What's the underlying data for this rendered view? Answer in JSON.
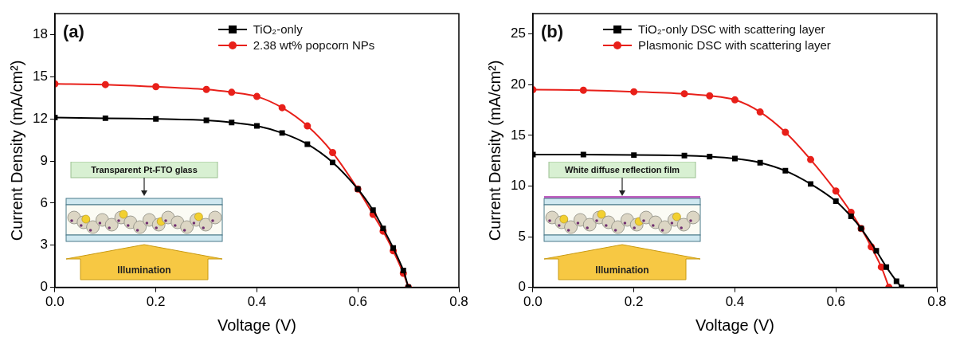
{
  "chart_data": [
    {
      "type": "line",
      "label": "(a)",
      "x_label": "Voltage (V)",
      "y_label": "Current Density (mA/cm²)",
      "xlim": [
        0,
        0.8
      ],
      "xticks": [
        {
          "value": 0,
          "label": "0.0"
        },
        0.2,
        0.4,
        0.6,
        0.8
      ],
      "ylim": [
        0,
        19.5
      ],
      "yticks": [
        0,
        3,
        6,
        9,
        12,
        15,
        18
      ],
      "grid": false,
      "legend": "upper right",
      "inset": {
        "label": "Transparent Pt-FTO glass",
        "light": "Illumination"
      },
      "series": [
        {
          "name": "TiO₂-only",
          "color": "#000000",
          "marker": "square",
          "line_style": "solid",
          "x": [
            0,
            0.1,
            0.2,
            0.3,
            0.35,
            0.4,
            0.45,
            0.5,
            0.55,
            0.6,
            0.63,
            0.65,
            0.67,
            0.69,
            0.7
          ],
          "values": [
            12.1,
            12.05,
            12.0,
            11.9,
            11.75,
            11.5,
            11.0,
            10.2,
            8.9,
            7.0,
            5.5,
            4.2,
            2.8,
            1.2,
            0
          ]
        },
        {
          "name": "2.38 wt% popcorn NPs",
          "color": "#e8201a",
          "marker": "circle",
          "line_style": "solid",
          "x": [
            0,
            0.1,
            0.2,
            0.3,
            0.35,
            0.4,
            0.45,
            0.5,
            0.55,
            0.6,
            0.63,
            0.65,
            0.67,
            0.69,
            0.7
          ],
          "values": [
            14.5,
            14.45,
            14.3,
            14.1,
            13.9,
            13.6,
            12.8,
            11.5,
            9.6,
            7.0,
            5.2,
            4.0,
            2.6,
            1.0,
            0
          ]
        }
      ]
    },
    {
      "type": "line",
      "label": "(b)",
      "x_label": "Voltage (V)",
      "y_label": "Current Density (mA/cm²)",
      "xlim": [
        0,
        0.8
      ],
      "xticks": [
        {
          "value": 0,
          "label": "0.0"
        },
        0.2,
        0.4,
        0.6,
        0.8
      ],
      "ylim": [
        0,
        27
      ],
      "yticks": [
        0,
        5,
        10,
        15,
        20,
        25
      ],
      "grid": false,
      "legend": "upper right",
      "inset": {
        "label": "White diffuse reflection film",
        "light": "Illumination"
      },
      "series": [
        {
          "name": "TiO₂-only DSC with scattering layer",
          "color": "#000000",
          "marker": "square",
          "line_style": "solid",
          "x": [
            0,
            0.1,
            0.2,
            0.3,
            0.35,
            0.4,
            0.45,
            0.5,
            0.55,
            0.6,
            0.63,
            0.65,
            0.68,
            0.7,
            0.72,
            0.73
          ],
          "values": [
            13.1,
            13.1,
            13.05,
            13.0,
            12.9,
            12.7,
            12.3,
            11.5,
            10.2,
            8.5,
            7.0,
            5.8,
            3.6,
            2.0,
            0.6,
            0
          ]
        },
        {
          "name": "Plasmonic DSC with scattering layer",
          "color": "#e8201a",
          "marker": "circle",
          "line_style": "solid",
          "x": [
            0,
            0.1,
            0.2,
            0.3,
            0.35,
            0.4,
            0.45,
            0.5,
            0.55,
            0.6,
            0.63,
            0.65,
            0.67,
            0.69,
            0.705
          ],
          "values": [
            19.5,
            19.45,
            19.3,
            19.1,
            18.9,
            18.5,
            17.3,
            15.3,
            12.6,
            9.5,
            7.4,
            5.8,
            4.0,
            2.0,
            0
          ]
        }
      ]
    }
  ]
}
